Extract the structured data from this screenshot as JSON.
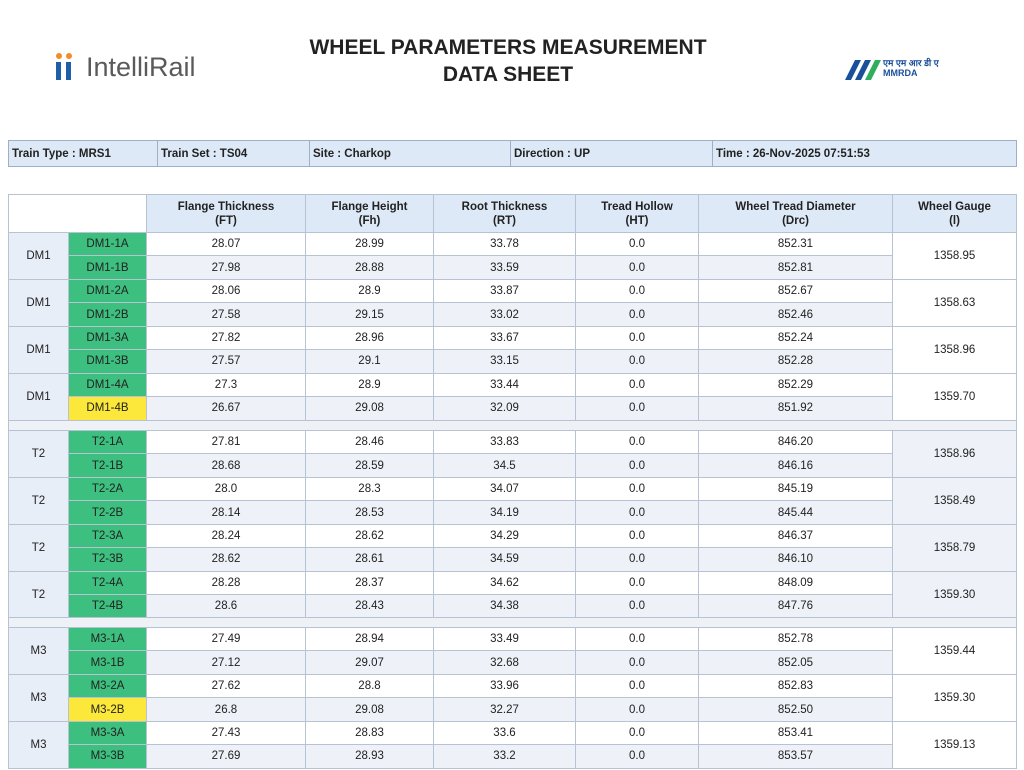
{
  "header": {
    "logo": "IntelliRail",
    "title_lines": [
      "WHEEL PARAMETERS MEASUREMENT",
      "DATA SHEET"
    ],
    "partner_logo_hindi": "एम एम आर डी ए",
    "partner_logo": "MMRDA"
  },
  "info": [
    "Train Type : MRS1",
    "Train Set : TS04",
    "Site : Charkop",
    "Direction : UP",
    "Time : 26-Nov-2025 07:51:53"
  ],
  "table": {
    "columns": [
      [
        "Flange Thickness",
        "(FT)"
      ],
      [
        "Flange Height",
        "(Fh)"
      ],
      [
        "Root Thickness",
        "(RT)"
      ],
      [
        "Tread Hollow",
        "(HT)"
      ],
      [
        "Wheel Tread Diameter",
        "(Drc)"
      ],
      [
        "Wheel Gauge",
        "(l)"
      ]
    ],
    "sections": [
      [
        {
          "car": "DM1",
          "gauge": "1358.95",
          "wheels": [
            {
              "id": "DM1-1A",
              "color": "#3dbf7f",
              "values": [
                "28.07",
                "28.99",
                "33.78",
                "0.0",
                "852.31"
              ]
            },
            {
              "id": "DM1-1B",
              "color": "#3dbf7f",
              "values": [
                "27.98",
                "28.88",
                "33.59",
                "0.0",
                "852.81"
              ]
            }
          ]
        },
        {
          "car": "DM1",
          "gauge": "1358.63",
          "wheels": [
            {
              "id": "DM1-2A",
              "color": "#3dbf7f",
              "values": [
                "28.06",
                "28.9",
                "33.87",
                "0.0",
                "852.67"
              ]
            },
            {
              "id": "DM1-2B",
              "color": "#3dbf7f",
              "values": [
                "27.58",
                "29.15",
                "33.02",
                "0.0",
                "852.46"
              ]
            }
          ]
        },
        {
          "car": "DM1",
          "gauge": "1358.96",
          "wheels": [
            {
              "id": "DM1-3A",
              "color": "#3dbf7f",
              "values": [
                "27.82",
                "28.96",
                "33.67",
                "0.0",
                "852.24"
              ]
            },
            {
              "id": "DM1-3B",
              "color": "#3dbf7f",
              "values": [
                "27.57",
                "29.1",
                "33.15",
                "0.0",
                "852.28"
              ]
            }
          ]
        },
        {
          "car": "DM1",
          "gauge": "1359.70",
          "wheels": [
            {
              "id": "DM1-4A",
              "color": "#3dbf7f",
              "values": [
                "27.3",
                "28.9",
                "33.44",
                "0.0",
                "852.29"
              ]
            },
            {
              "id": "DM1-4B",
              "color": "#fbe83a",
              "values": [
                "26.67",
                "29.08",
                "32.09",
                "0.0",
                "851.92"
              ]
            }
          ]
        }
      ],
      [
        {
          "car": "T2",
          "gauge": "1358.96",
          "wheels": [
            {
              "id": "T2-1A",
              "color": "#3dbf7f",
              "values": [
                "27.81",
                "28.46",
                "33.83",
                "0.0",
                "846.20"
              ]
            },
            {
              "id": "T2-1B",
              "color": "#3dbf7f",
              "values": [
                "28.68",
                "28.59",
                "34.5",
                "0.0",
                "846.16"
              ]
            }
          ]
        },
        {
          "car": "T2",
          "gauge": "1358.49",
          "wheels": [
            {
              "id": "T2-2A",
              "color": "#3dbf7f",
              "values": [
                "28.0",
                "28.3",
                "34.07",
                "0.0",
                "845.19"
              ]
            },
            {
              "id": "T2-2B",
              "color": "#3dbf7f",
              "values": [
                "28.14",
                "28.53",
                "34.19",
                "0.0",
                "845.44"
              ]
            }
          ]
        },
        {
          "car": "T2",
          "gauge": "1358.79",
          "wheels": [
            {
              "id": "T2-3A",
              "color": "#3dbf7f",
              "values": [
                "28.24",
                "28.62",
                "34.29",
                "0.0",
                "846.37"
              ]
            },
            {
              "id": "T2-3B",
              "color": "#3dbf7f",
              "values": [
                "28.62",
                "28.61",
                "34.59",
                "0.0",
                "846.10"
              ]
            }
          ]
        },
        {
          "car": "T2",
          "gauge": "1359.30",
          "wheels": [
            {
              "id": "T2-4A",
              "color": "#3dbf7f",
              "values": [
                "28.28",
                "28.37",
                "34.62",
                "0.0",
                "848.09"
              ]
            },
            {
              "id": "T2-4B",
              "color": "#3dbf7f",
              "values": [
                "28.6",
                "28.43",
                "34.38",
                "0.0",
                "847.76"
              ]
            }
          ]
        }
      ],
      [
        {
          "car": "M3",
          "gauge": "1359.44",
          "wheels": [
            {
              "id": "M3-1A",
              "color": "#3dbf7f",
              "values": [
                "27.49",
                "28.94",
                "33.49",
                "0.0",
                "852.78"
              ]
            },
            {
              "id": "M3-1B",
              "color": "#3dbf7f",
              "values": [
                "27.12",
                "29.07",
                "32.68",
                "0.0",
                "852.05"
              ]
            }
          ]
        },
        {
          "car": "M3",
          "gauge": "1359.30",
          "wheels": [
            {
              "id": "M3-2A",
              "color": "#3dbf7f",
              "values": [
                "27.62",
                "28.8",
                "33.96",
                "0.0",
                "852.83"
              ]
            },
            {
              "id": "M3-2B",
              "color": "#fbe83a",
              "values": [
                "26.8",
                "29.08",
                "32.27",
                "0.0",
                "852.50"
              ]
            }
          ]
        },
        {
          "car": "M3",
          "gauge": "1359.13",
          "wheels": [
            {
              "id": "M3-3A",
              "color": "#3dbf7f",
              "values": [
                "27.43",
                "28.83",
                "33.6",
                "0.0",
                "853.41"
              ]
            },
            {
              "id": "M3-3B",
              "color": "#3dbf7f",
              "values": [
                "27.69",
                "28.93",
                "33.2",
                "0.0",
                "853.57"
              ]
            }
          ]
        }
      ]
    ]
  }
}
